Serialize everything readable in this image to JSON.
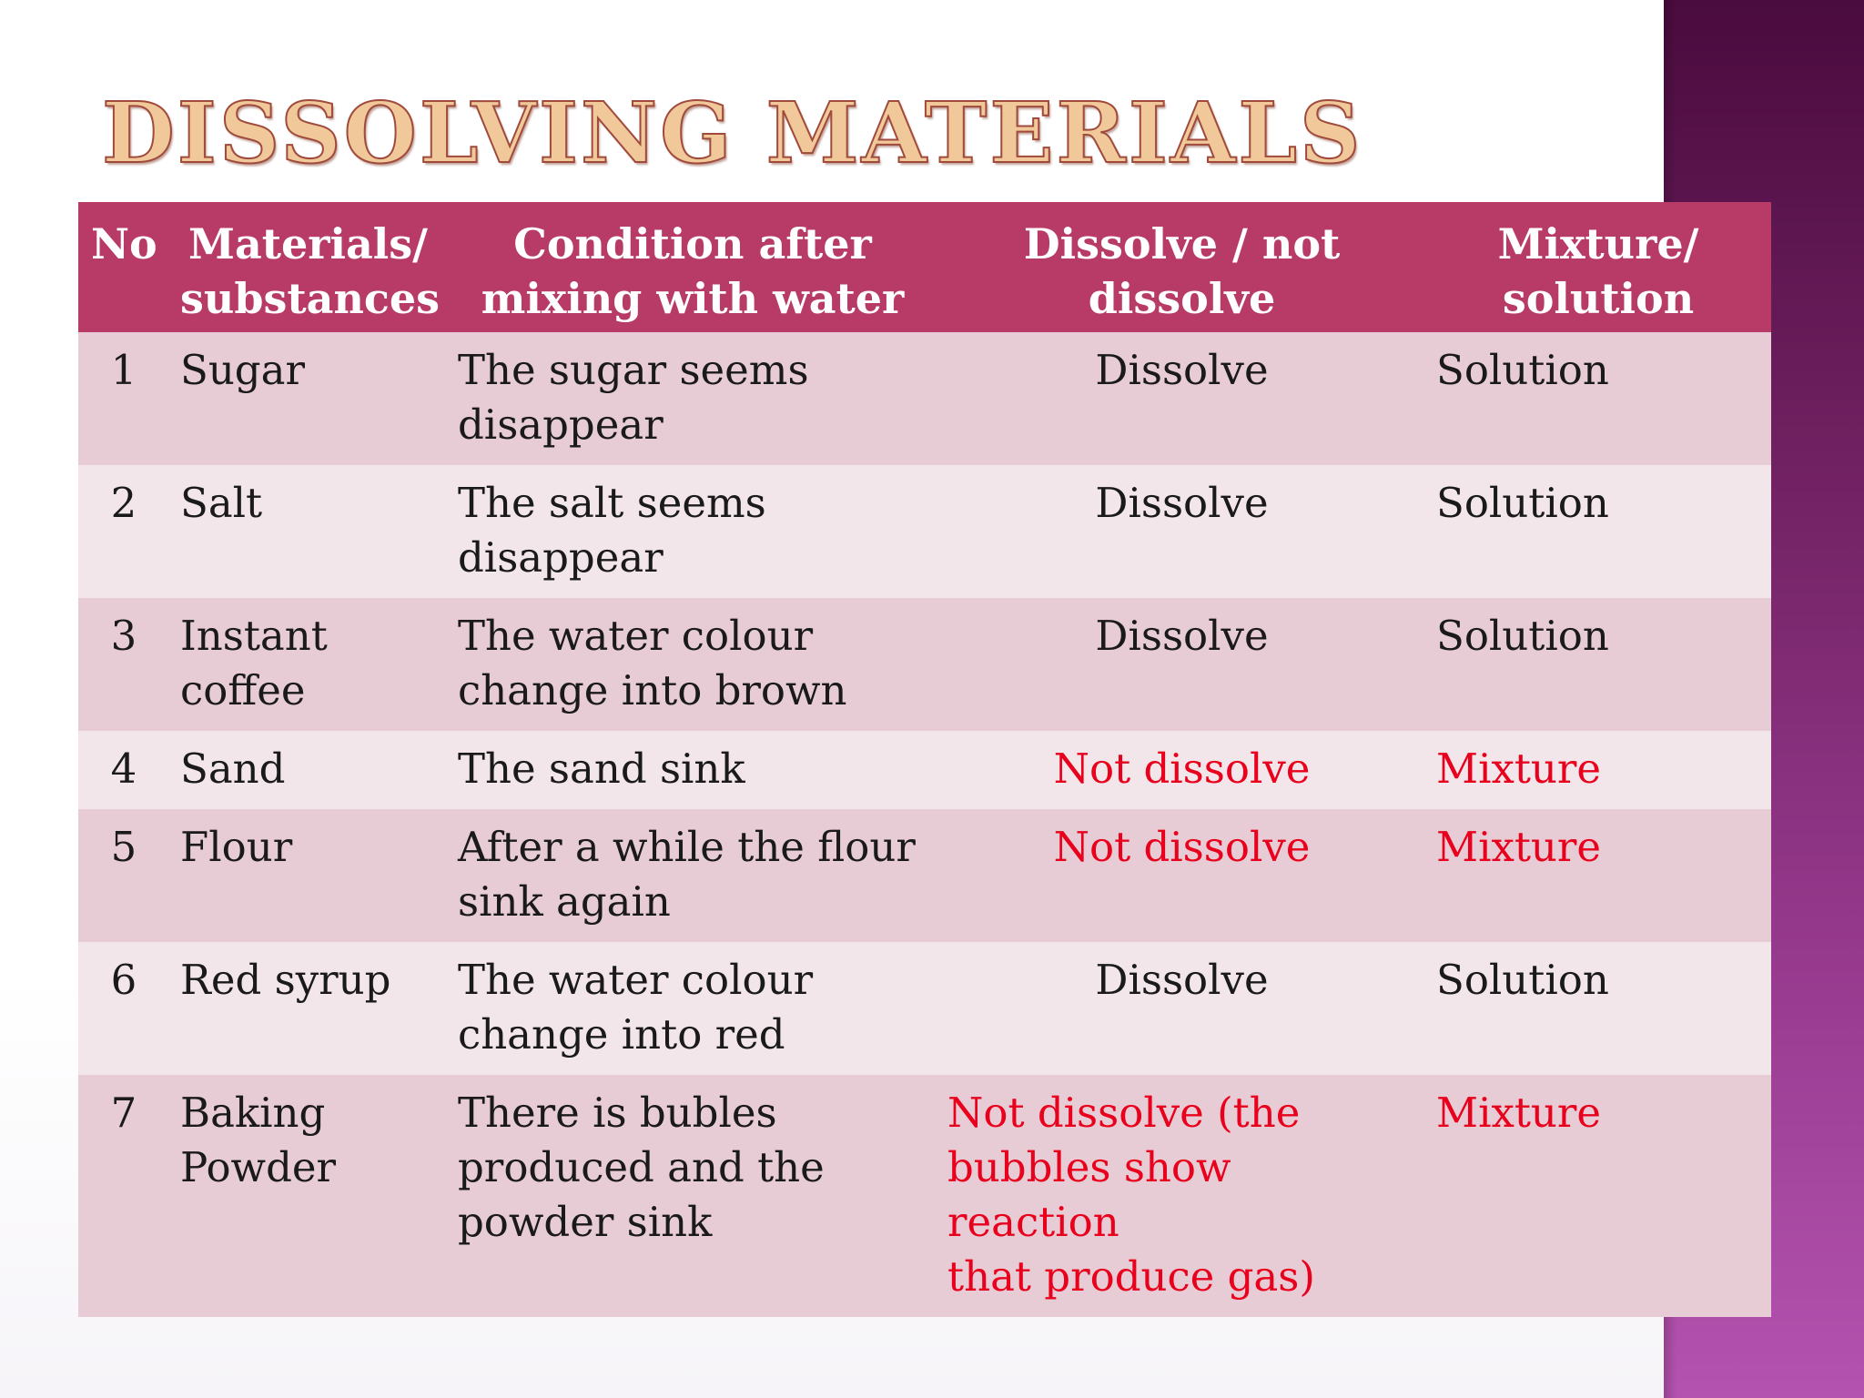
{
  "title": "Dissolving Materials",
  "colors": {
    "header_bg": "#b73b66",
    "row_dark": "#e8ccd5",
    "row_light": "#f3e6eb",
    "highlight_text": "#e8001c",
    "side_band": "#6d1f5e"
  },
  "table": {
    "headers": {
      "no": "No",
      "materials": "Materials/\nsubstances",
      "condition": "Condition after\nmixing with water",
      "dissolve": "Dissolve / not\ndissolve",
      "mixture": "Mixture/\nsolution"
    },
    "rows": [
      {
        "no": "1",
        "material": "Sugar",
        "condition": "The sugar seems\ndisappear",
        "dissolve": "Dissolve",
        "mixture": "Solution"
      },
      {
        "no": "2",
        "material": "Salt",
        "condition": "The salt seems\ndisappear",
        "dissolve": "Dissolve",
        "mixture": "Solution"
      },
      {
        "no": "3",
        "material": "Instant\ncoffee",
        "condition": "The water colour\nchange into brown",
        "dissolve": "Dissolve",
        "mixture": "Solution"
      },
      {
        "no": "4",
        "material": "Sand",
        "condition": "The sand sink",
        "dissolve": "Not dissolve",
        "mixture": "Mixture"
      },
      {
        "no": "5",
        "material": "Flour",
        "condition": "After a while the flour\nsink again",
        "dissolve": "Not dissolve",
        "mixture": "Mixture"
      },
      {
        "no": "6",
        "material": "Red syrup",
        "condition": "The water colour\nchange into red",
        "dissolve": "Dissolve",
        "mixture": "Solution"
      },
      {
        "no": "7",
        "material": "Baking\nPowder",
        "condition": "There is bubles\nproduced and the\npowder sink",
        "dissolve": "Not dissolve (the\nbubbles show reaction\nthat produce gas)",
        "mixture": "Mixture"
      }
    ]
  }
}
